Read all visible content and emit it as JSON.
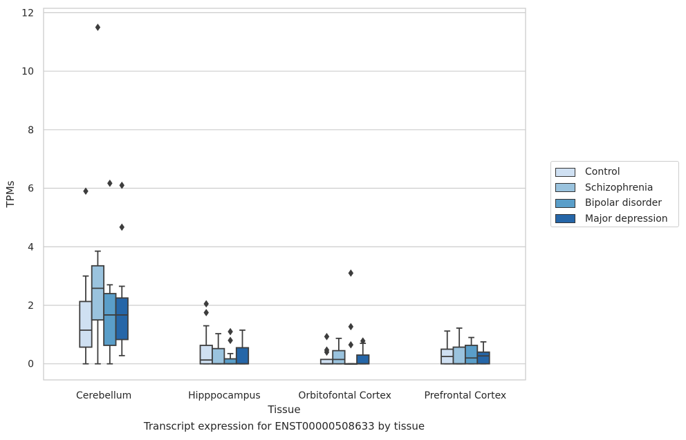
{
  "chart_data": {
    "type": "box",
    "title": "Transcript expression for ENST00000508633 by tissue",
    "xlabel": "Tissue",
    "ylabel": "TPMs",
    "ylim": [
      -0.55,
      12.15
    ],
    "yticks": [
      0,
      2,
      4,
      6,
      8,
      10,
      12
    ],
    "grid": "horizontal",
    "legend_position": "right",
    "categories": [
      "Cerebellum",
      "Hipppocampus",
      "Orbitofontal Cortex",
      "Prefrontal Cortex"
    ],
    "series": [
      {
        "name": "Control",
        "color": "#cfe0f2",
        "boxes": [
          {
            "whislo": 0.0,
            "q1": 0.57,
            "med": 1.15,
            "q3": 2.13,
            "whishi": 3.0,
            "fliers": [
              5.9
            ]
          },
          {
            "whislo": 0.0,
            "q1": 0.0,
            "med": 0.13,
            "q3": 0.63,
            "whishi": 1.3,
            "fliers": [
              1.75,
              2.05
            ]
          },
          {
            "whislo": 0.0,
            "q1": 0.0,
            "med": 0.0,
            "q3": 0.15,
            "whishi": 0.15,
            "fliers": [
              0.4,
              0.47,
              0.93
            ]
          },
          {
            "whislo": 0.0,
            "q1": 0.0,
            "med": 0.25,
            "q3": 0.5,
            "whishi": 1.12,
            "fliers": []
          }
        ]
      },
      {
        "name": "Schizophrenia",
        "color": "#9ac3de",
        "boxes": [
          {
            "whislo": 0.0,
            "q1": 1.5,
            "med": 2.58,
            "q3": 3.35,
            "whishi": 3.85,
            "fliers": [
              11.5
            ]
          },
          {
            "whislo": 0.0,
            "q1": 0.0,
            "med": 0.0,
            "q3": 0.52,
            "whishi": 1.03,
            "fliers": []
          },
          {
            "whislo": 0.0,
            "q1": 0.0,
            "med": 0.15,
            "q3": 0.45,
            "whishi": 0.87,
            "fliers": []
          },
          {
            "whislo": 0.0,
            "q1": 0.0,
            "med": 0.0,
            "q3": 0.57,
            "whishi": 1.22,
            "fliers": []
          }
        ]
      },
      {
        "name": "Bipolar disorder",
        "color": "#5a9ec9",
        "boxes": [
          {
            "whislo": 0.0,
            "q1": 0.63,
            "med": 1.67,
            "q3": 2.4,
            "whishi": 2.7,
            "fliers": [
              6.17
            ]
          },
          {
            "whislo": 0.0,
            "q1": 0.0,
            "med": 0.0,
            "q3": 0.17,
            "whishi": 0.35,
            "fliers": [
              0.8,
              1.1
            ]
          },
          {
            "whislo": 0.0,
            "q1": 0.0,
            "med": 0.0,
            "q3": 0.0,
            "whishi": 0.0,
            "fliers": [
              0.65,
              1.27,
              3.1
            ]
          },
          {
            "whislo": 0.0,
            "q1": 0.0,
            "med": 0.2,
            "q3": 0.63,
            "whishi": 0.9,
            "fliers": []
          }
        ]
      },
      {
        "name": "Major depression",
        "color": "#2566a8",
        "boxes": [
          {
            "whislo": 0.28,
            "q1": 0.83,
            "med": 1.67,
            "q3": 2.25,
            "whishi": 2.65,
            "fliers": [
              4.67,
              6.1
            ]
          },
          {
            "whislo": 0.0,
            "q1": 0.0,
            "med": 0.0,
            "q3": 0.55,
            "whishi": 1.15,
            "fliers": []
          },
          {
            "whislo": 0.0,
            "q1": 0.0,
            "med": 0.0,
            "q3": 0.3,
            "whishi": 0.7,
            "fliers": [
              0.78
            ]
          },
          {
            "whislo": 0.0,
            "q1": 0.0,
            "med": 0.27,
            "q3": 0.4,
            "whishi": 0.75,
            "fliers": []
          }
        ]
      }
    ]
  }
}
